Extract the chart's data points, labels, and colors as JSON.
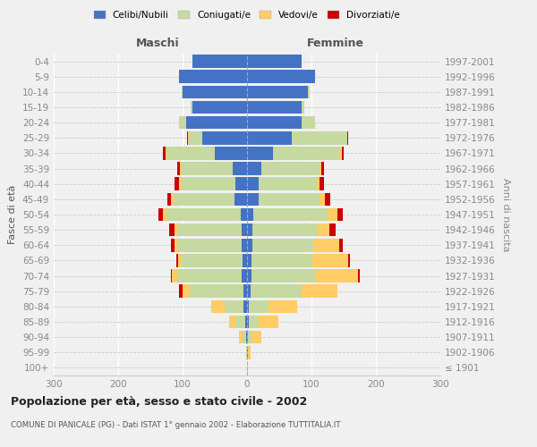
{
  "age_groups": [
    "100+",
    "95-99",
    "90-94",
    "85-89",
    "80-84",
    "75-79",
    "70-74",
    "65-69",
    "60-64",
    "55-59",
    "50-54",
    "45-49",
    "40-44",
    "35-39",
    "30-34",
    "25-29",
    "20-24",
    "15-19",
    "10-14",
    "5-9",
    "0-4"
  ],
  "birth_years": [
    "≤ 1901",
    "1902-1906",
    "1907-1911",
    "1912-1916",
    "1917-1921",
    "1922-1926",
    "1927-1931",
    "1932-1936",
    "1937-1941",
    "1942-1946",
    "1947-1951",
    "1952-1956",
    "1957-1961",
    "1962-1966",
    "1967-1971",
    "1972-1976",
    "1977-1981",
    "1982-1986",
    "1987-1991",
    "1992-1996",
    "1997-2001"
  ],
  "maschi_celibe": [
    0,
    0,
    2,
    3,
    5,
    5,
    8,
    7,
    8,
    8,
    10,
    20,
    18,
    22,
    50,
    70,
    95,
    85,
    100,
    105,
    85
  ],
  "maschi_coniugato": [
    0,
    1,
    5,
    15,
    30,
    85,
    100,
    95,
    100,
    100,
    115,
    95,
    85,
    80,
    75,
    20,
    10,
    2,
    1,
    0,
    0
  ],
  "maschi_vedovo": [
    0,
    0,
    5,
    10,
    20,
    10,
    8,
    5,
    5,
    5,
    5,
    3,
    3,
    2,
    1,
    1,
    0,
    0,
    0,
    0,
    0
  ],
  "maschi_divorziato": [
    0,
    0,
    0,
    0,
    0,
    5,
    2,
    3,
    5,
    8,
    8,
    5,
    7,
    5,
    4,
    2,
    1,
    0,
    0,
    0,
    0
  ],
  "femmine_celibe": [
    0,
    1,
    2,
    3,
    3,
    5,
    7,
    7,
    8,
    8,
    10,
    18,
    18,
    22,
    40,
    70,
    85,
    85,
    95,
    105,
    85
  ],
  "femmine_coniugato": [
    0,
    0,
    5,
    15,
    30,
    80,
    100,
    95,
    95,
    100,
    115,
    95,
    90,
    90,
    105,
    85,
    20,
    4,
    2,
    0,
    0
  ],
  "femmine_vedovo": [
    2,
    5,
    15,
    30,
    45,
    55,
    65,
    55,
    40,
    20,
    15,
    8,
    5,
    3,
    2,
    1,
    1,
    0,
    0,
    0,
    0
  ],
  "femmine_divorziato": [
    0,
    0,
    0,
    0,
    0,
    0,
    3,
    3,
    5,
    10,
    8,
    8,
    7,
    5,
    3,
    1,
    0,
    0,
    0,
    0,
    0
  ],
  "colors": {
    "celibe": "#4472C4",
    "coniugato": "#C5D9A0",
    "vedovo": "#FFCC66",
    "divorziato": "#CC0000"
  },
  "title": "Popolazione per età, sesso e stato civile - 2002",
  "subtitle": "COMUNE DI PANICALE (PG) - Dati ISTAT 1° gennaio 2002 - Elaborazione TUTTITALIA.IT",
  "ylabel": "Fasce di età",
  "right_ylabel": "Anni di nascita",
  "xlim": [
    -300,
    300
  ],
  "xticks": [
    -300,
    -200,
    -100,
    0,
    100,
    200,
    300
  ],
  "xticklabels": [
    "300",
    "200",
    "100",
    "0",
    "100",
    "200",
    "300"
  ],
  "maschi_label": "Maschi",
  "femmine_label": "Femmine",
  "legend_labels": [
    "Celibi/Nubili",
    "Coniugati/e",
    "Vedovi/e",
    "Divorziati/e"
  ],
  "background_color": "#f0f0f0",
  "bar_height": 0.85
}
